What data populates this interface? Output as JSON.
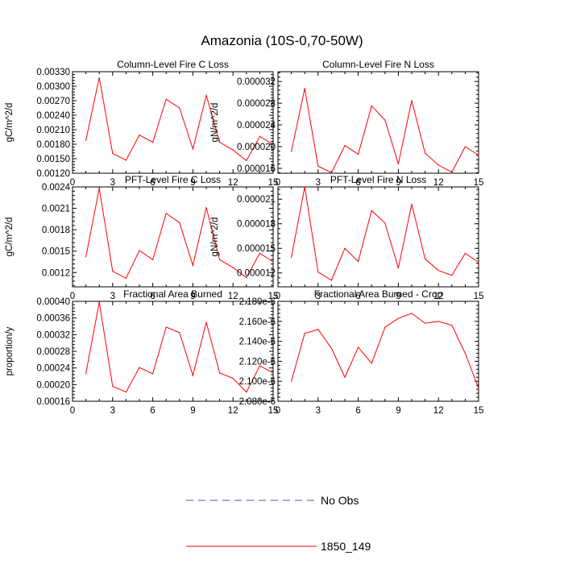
{
  "figure_title": "Amazonia (10S-0,70-50W)",
  "legend": [
    {
      "label": "No Obs",
      "color": "#4c4cc8",
      "style": "dashed"
    },
    {
      "label": "1850_149",
      "color": "#ff0000",
      "style": "solid"
    }
  ],
  "chart_data": [
    {
      "type": "line",
      "title": "Column-Level Fire C Loss",
      "xlabel": "",
      "ylabel": "gC/m^2/d",
      "xlim": [
        0,
        15
      ],
      "ylim": [
        0.0012,
        0.0033
      ],
      "xticks": [
        0,
        3,
        6,
        9,
        12,
        15
      ],
      "xtick_labels": [
        "0",
        "3",
        "6",
        "9",
        "12",
        "15"
      ],
      "yticks": [
        0.0012,
        0.0015,
        0.0018,
        0.0021,
        0.0024,
        0.0027,
        0.003,
        0.0033
      ],
      "ytick_labels": [
        "0.00120",
        "0.00150",
        "0.00180",
        "0.00210",
        "0.00240",
        "0.00270",
        "0.00300",
        "0.00330"
      ],
      "grid": false,
      "series": [
        {
          "name": "1850_149",
          "color": "#ff0000",
          "x": [
            1,
            2,
            3,
            4,
            5,
            6,
            7,
            8,
            9,
            10,
            11,
            12,
            13,
            14,
            15
          ],
          "values": [
            0.00188,
            0.00318,
            0.00161,
            0.00147,
            0.00199,
            0.00184,
            0.00273,
            0.00255,
            0.0017,
            0.00281,
            0.00184,
            0.00168,
            0.00146,
            0.00196,
            0.0018
          ]
        }
      ]
    },
    {
      "type": "line",
      "title": "Column-Level Fire N Loss",
      "xlabel": "",
      "ylabel": "gN/m^2/d",
      "xlim": [
        0,
        15
      ],
      "ylim": [
        1.51e-05,
        3.38e-05
      ],
      "xticks": [
        0,
        3,
        6,
        9,
        12,
        15
      ],
      "xtick_labels": [
        "0",
        "3",
        "6",
        "9",
        "12",
        "15"
      ],
      "yticks": [
        1.6e-05,
        2e-05,
        2.4e-05,
        2.8e-05,
        3.2e-05
      ],
      "ytick_labels": [
        "0.000016",
        "0.000020",
        "0.000024",
        "0.000028",
        "0.000032"
      ],
      "grid": false,
      "series": [
        {
          "name": "1850_149",
          "color": "#ff0000",
          "x": [
            1,
            2,
            3,
            4,
            5,
            6,
            7,
            8,
            9,
            10,
            11,
            12,
            13,
            14,
            15
          ],
          "values": [
            1.91e-05,
            3.07e-05,
            1.64e-05,
            1.52e-05,
            2.02e-05,
            1.86e-05,
            2.75e-05,
            2.49e-05,
            1.68e-05,
            2.85e-05,
            1.88e-05,
            1.66e-05,
            1.53e-05,
            2e-05,
            1.84e-05
          ]
        }
      ]
    },
    {
      "type": "line",
      "title": "PFT-Level Fire C Loss",
      "xlabel": "",
      "ylabel": "gC/m^2/d",
      "xlim": [
        0,
        15
      ],
      "ylim": [
        0.001,
        0.0024
      ],
      "xticks": [
        0,
        3,
        6,
        9,
        12,
        15
      ],
      "xtick_labels": [
        "0",
        "3",
        "6",
        "9",
        "12",
        "15"
      ],
      "yticks": [
        0.0012,
        0.0015,
        0.0018,
        0.0021,
        0.0024
      ],
      "ytick_labels": [
        "0.0012",
        "0.0015",
        "0.0018",
        "0.0021",
        "0.0024"
      ],
      "grid": false,
      "series": [
        {
          "name": "1850_149",
          "color": "#ff0000",
          "x": [
            1,
            2,
            3,
            4,
            5,
            6,
            7,
            8,
            9,
            10,
            11,
            12,
            13,
            14,
            15
          ],
          "values": [
            0.00142,
            0.00238,
            0.00122,
            0.00112,
            0.00151,
            0.00138,
            0.00203,
            0.0019,
            0.0013,
            0.00211,
            0.00138,
            0.00127,
            0.00113,
            0.00147,
            0.00135
          ]
        }
      ]
    },
    {
      "type": "line",
      "title": "PFT-Level Fire N Loss",
      "xlabel": "",
      "ylabel": "gN/m^2/d",
      "xlim": [
        0,
        15
      ],
      "ylim": [
        1.03e-05,
        2.25e-05
      ],
      "xticks": [
        0,
        3,
        6,
        9,
        12,
        15
      ],
      "xtick_labels": [
        "0",
        "3",
        "6",
        "9",
        "12",
        "15"
      ],
      "yticks": [
        1.2e-05,
        1.5e-05,
        1.8e-05,
        2.1e-05
      ],
      "ytick_labels": [
        "0.000012",
        "0.000015",
        "0.000018",
        "0.000021"
      ],
      "grid": false,
      "series": [
        {
          "name": "1850_149",
          "color": "#ff0000",
          "x": [
            1,
            2,
            3,
            4,
            5,
            6,
            7,
            8,
            9,
            10,
            11,
            12,
            13,
            14,
            15
          ],
          "values": [
            1.39e-05,
            2.25e-05,
            1.21e-05,
            1.11e-05,
            1.5e-05,
            1.34e-05,
            1.96e-05,
            1.81e-05,
            1.26e-05,
            2.04e-05,
            1.37e-05,
            1.23e-05,
            1.17e-05,
            1.44e-05,
            1.33e-05
          ]
        }
      ]
    },
    {
      "type": "line",
      "title": "Fractional Area Burned",
      "xlabel": "",
      "ylabel": "proportion/y",
      "xlim": [
        0,
        15
      ],
      "ylim": [
        0.00016,
        0.0004
      ],
      "xticks": [
        0,
        3,
        6,
        9,
        12,
        15
      ],
      "xtick_labels": [
        "0",
        "3",
        "6",
        "9",
        "12",
        "15"
      ],
      "yticks": [
        0.00016,
        0.0002,
        0.00024,
        0.00028,
        0.00032,
        0.00036,
        0.0004
      ],
      "ytick_labels": [
        "0.00016",
        "0.00020",
        "0.00024",
        "0.00028",
        "0.00032",
        "0.00036",
        "0.00040"
      ],
      "grid": false,
      "series": [
        {
          "name": "1850_149",
          "color": "#ff0000",
          "x": [
            1,
            2,
            3,
            4,
            5,
            6,
            7,
            8,
            9,
            10,
            11,
            12,
            13,
            14,
            15
          ],
          "values": [
            0.000227,
            0.000398,
            0.000196,
            0.000182,
            0.000241,
            0.000226,
            0.000338,
            0.000325,
            0.000222,
            0.00035,
            0.000228,
            0.000215,
            0.000182,
            0.000245,
            0.000228
          ]
        }
      ]
    },
    {
      "type": "line",
      "title": "Fractional Area Burned - Crop",
      "xlabel": "",
      "ylabel": "",
      "xlim": [
        0,
        15
      ],
      "ylim": [
        2.08e-06,
        2.18e-06
      ],
      "xticks": [
        0,
        3,
        6,
        9,
        12,
        15
      ],
      "xtick_labels": [
        "0",
        "3",
        "6",
        "9",
        "12",
        "15"
      ],
      "yticks": [
        2.08e-06,
        2.1e-06,
        2.12e-06,
        2.14e-06,
        2.16e-06,
        2.18e-06
      ],
      "ytick_labels": [
        "2.080e-6",
        "2.100e-6",
        "2.120e-6",
        "2.140e-6",
        "2.160e-6",
        "2.180e-6"
      ],
      "grid": false,
      "series": [
        {
          "name": "1850_149",
          "color": "#ff0000",
          "x": [
            1,
            2,
            3,
            4,
            5,
            6,
            7,
            8,
            9,
            10,
            11,
            12,
            13,
            14,
            15
          ],
          "values": [
            2.1e-06,
            2.148e-06,
            2.152e-06,
            2.133e-06,
            2.104e-06,
            2.134e-06,
            2.118e-06,
            2.154e-06,
            2.163e-06,
            2.168e-06,
            2.158e-06,
            2.16e-06,
            2.156e-06,
            2.128e-06,
            2.093e-06
          ]
        }
      ]
    }
  ]
}
